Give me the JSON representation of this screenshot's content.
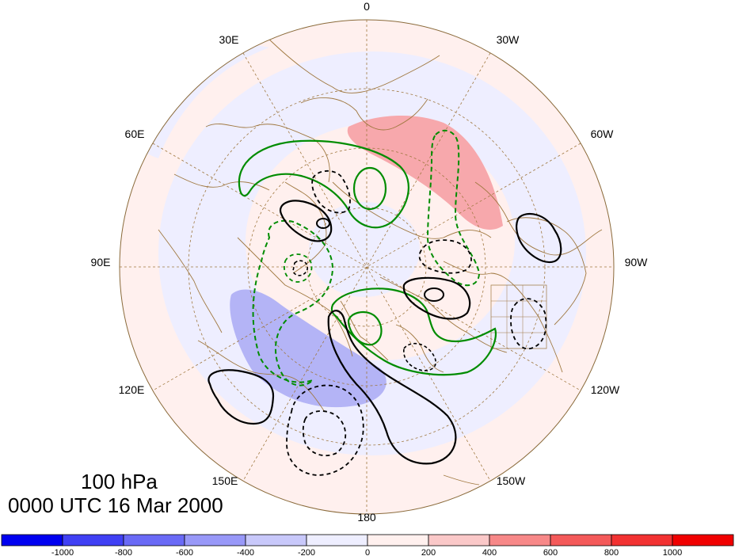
{
  "map": {
    "level_label": "100 hPa",
    "time_label": "0000 UTC 16 Mar 2000",
    "projection": "north polar stereographic",
    "longitude_labels": [
      {
        "name": "lon-0",
        "text": "0"
      },
      {
        "name": "lon-30e",
        "text": "30E"
      },
      {
        "name": "lon-30w",
        "text": "30W"
      },
      {
        "name": "lon-60e",
        "text": "60E"
      },
      {
        "name": "lon-60w",
        "text": "60W"
      },
      {
        "name": "lon-90e",
        "text": "90E"
      },
      {
        "name": "lon-90w",
        "text": "90W"
      },
      {
        "name": "lon-120e",
        "text": "120E"
      },
      {
        "name": "lon-120w",
        "text": "120W"
      },
      {
        "name": "lon-150e",
        "text": "150E"
      },
      {
        "name": "lon-150w",
        "text": "150W"
      },
      {
        "name": "lon-180",
        "text": "180"
      }
    ],
    "colors": {
      "background_negative": "#eeeeff",
      "background_positive": "#fff0ee",
      "shade_positive": "#f7a8ac",
      "shade_negative": "#b4b4f6",
      "gridlines": "#a07840",
      "contour_solid": "#000000",
      "contour_green": "#008c00"
    }
  },
  "colorbar": {
    "ticks": [
      "-1000",
      "-800",
      "-600",
      "-400",
      "-200",
      "0",
      "200",
      "400",
      "600",
      "800",
      "1000"
    ],
    "colors": [
      "#0000f0",
      "#4040f4",
      "#6a6af6",
      "#9898f8",
      "#c8c8fa",
      "#eeeeff",
      "#fff0ee",
      "#fac8c8",
      "#f78888",
      "#f45a5a",
      "#f23232",
      "#f00000"
    ]
  }
}
